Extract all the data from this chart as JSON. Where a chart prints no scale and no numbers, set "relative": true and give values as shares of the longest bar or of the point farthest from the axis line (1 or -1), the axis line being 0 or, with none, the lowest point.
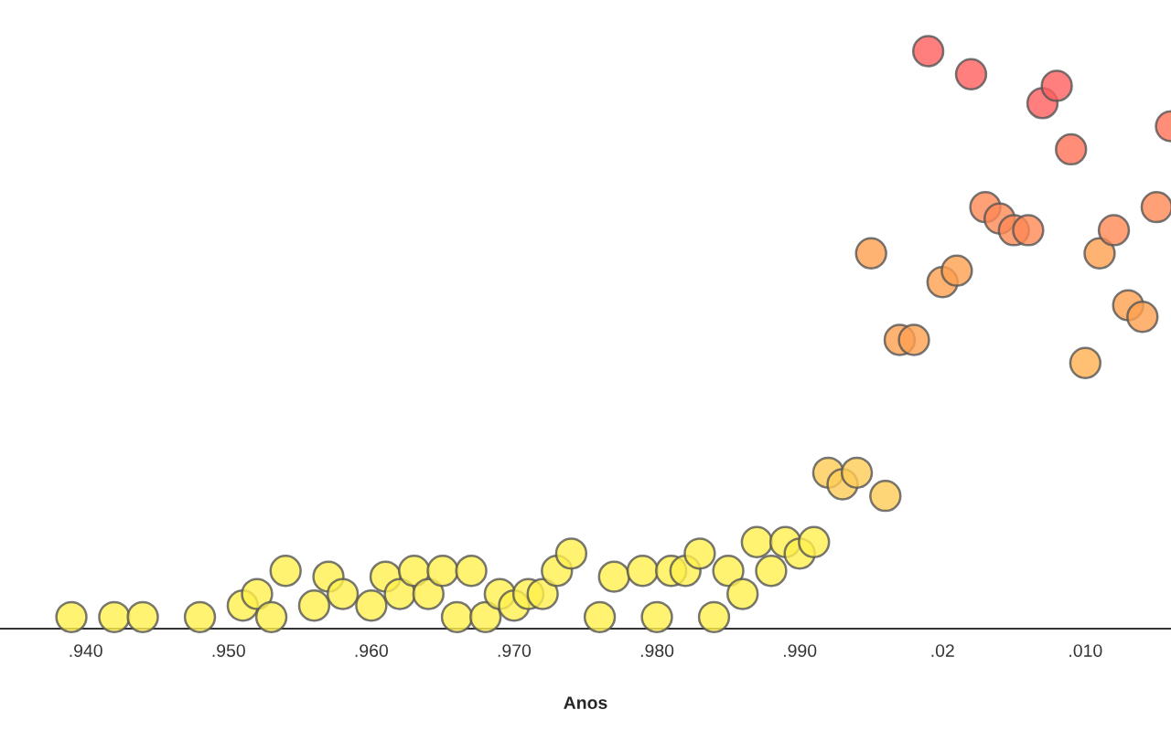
{
  "chart_data": {
    "type": "scatter",
    "xlabel": "Anos",
    "relative": true,
    "marker": "circle",
    "grid": false,
    "legend": false,
    "categories": [
      null,
      null,
      null,
      null,
      null,
      null,
      ".940",
      null,
      null,
      null,
      null,
      null,
      null,
      null,
      null,
      null,
      ".950",
      null,
      null,
      null,
      null,
      null,
      null,
      null,
      null,
      null,
      ".960",
      null,
      null,
      null,
      null,
      null,
      null,
      null,
      null,
      null,
      ".970",
      null,
      null,
      null,
      null,
      null,
      null,
      null,
      null,
      null,
      ".980",
      null,
      null,
      null,
      null,
      null,
      null,
      null,
      null,
      null,
      ".990",
      null,
      null,
      null,
      null,
      null,
      null,
      null,
      null,
      null,
      ".02",
      null,
      null,
      null,
      null,
      null,
      null,
      null,
      null,
      null,
      ".010",
      null,
      null,
      null,
      null,
      null,
      null
    ],
    "values": [
      null,
      null,
      null,
      null,
      null,
      0.02,
      null,
      null,
      0.02,
      null,
      0.02,
      null,
      null,
      null,
      0.02,
      null,
      null,
      0.04,
      0.06,
      0.02,
      0.1,
      null,
      0.04,
      0.09,
      0.06,
      null,
      0.04,
      0.09,
      0.06,
      0.1,
      0.06,
      0.1,
      0.02,
      0.1,
      0.02,
      0.06,
      0.04,
      0.06,
      0.06,
      0.1,
      0.13,
      null,
      0.02,
      0.09,
      null,
      0.1,
      0.02,
      0.1,
      0.1,
      0.13,
      0.02,
      0.1,
      0.06,
      0.15,
      0.1,
      0.15,
      0.13,
      0.15,
      0.27,
      0.25,
      0.27,
      0.65,
      0.23,
      0.5,
      0.5,
      1.0,
      0.6,
      0.62,
      0.96,
      0.73,
      0.71,
      0.69,
      0.69,
      0.91,
      0.94,
      0.83,
      0.46,
      0.65,
      0.69,
      0.56,
      0.54,
      0.73,
      0.87
    ],
    "colors": [
      null,
      null,
      null,
      null,
      null,
      "#fff04d",
      null,
      null,
      "#fff04d",
      null,
      "#fff04d",
      null,
      null,
      null,
      "#fff04d",
      null,
      null,
      "#fff04d",
      "#fff04d",
      "#fff04d",
      "#fff04d",
      null,
      "#fff04d",
      "#fff04d",
      "#fff04d",
      null,
      "#fff04d",
      "#fff04d",
      "#fff04d",
      "#fff04d",
      "#fff04d",
      "#fff04d",
      "#fff04d",
      "#fff04d",
      "#fff04d",
      "#fff04d",
      "#fff04d",
      "#fff04d",
      "#fff04d",
      "#fff04d",
      "#fff04d",
      null,
      "#fff04d",
      "#fff04d",
      null,
      "#fff04d",
      "#fff04d",
      "#fff04d",
      "#fff04d",
      "#fff04d",
      "#fff04d",
      "#fff04d",
      "#fff04d",
      "#fff04d",
      "#fff04d",
      "#fff04d",
      "#fff04d",
      "#fff04d",
      "#ffcc55",
      "#ffcc55",
      "#ffcc55",
      "#ffa050",
      "#ffcc55",
      "#ffa050",
      "#ffa050",
      "#ff5f5f",
      "#ffa050",
      "#ffa050",
      "#ff5f5f",
      "#ff8855",
      "#ff8855",
      "#ff8855",
      "#ff8855",
      "#ff5f5f",
      "#ff5f5f",
      "#ff7055",
      "#ffb050",
      "#ffa050",
      "#ff8855",
      "#ffa050",
      "#ffa050",
      "#ff8855",
      "#ff7055"
    ]
  }
}
